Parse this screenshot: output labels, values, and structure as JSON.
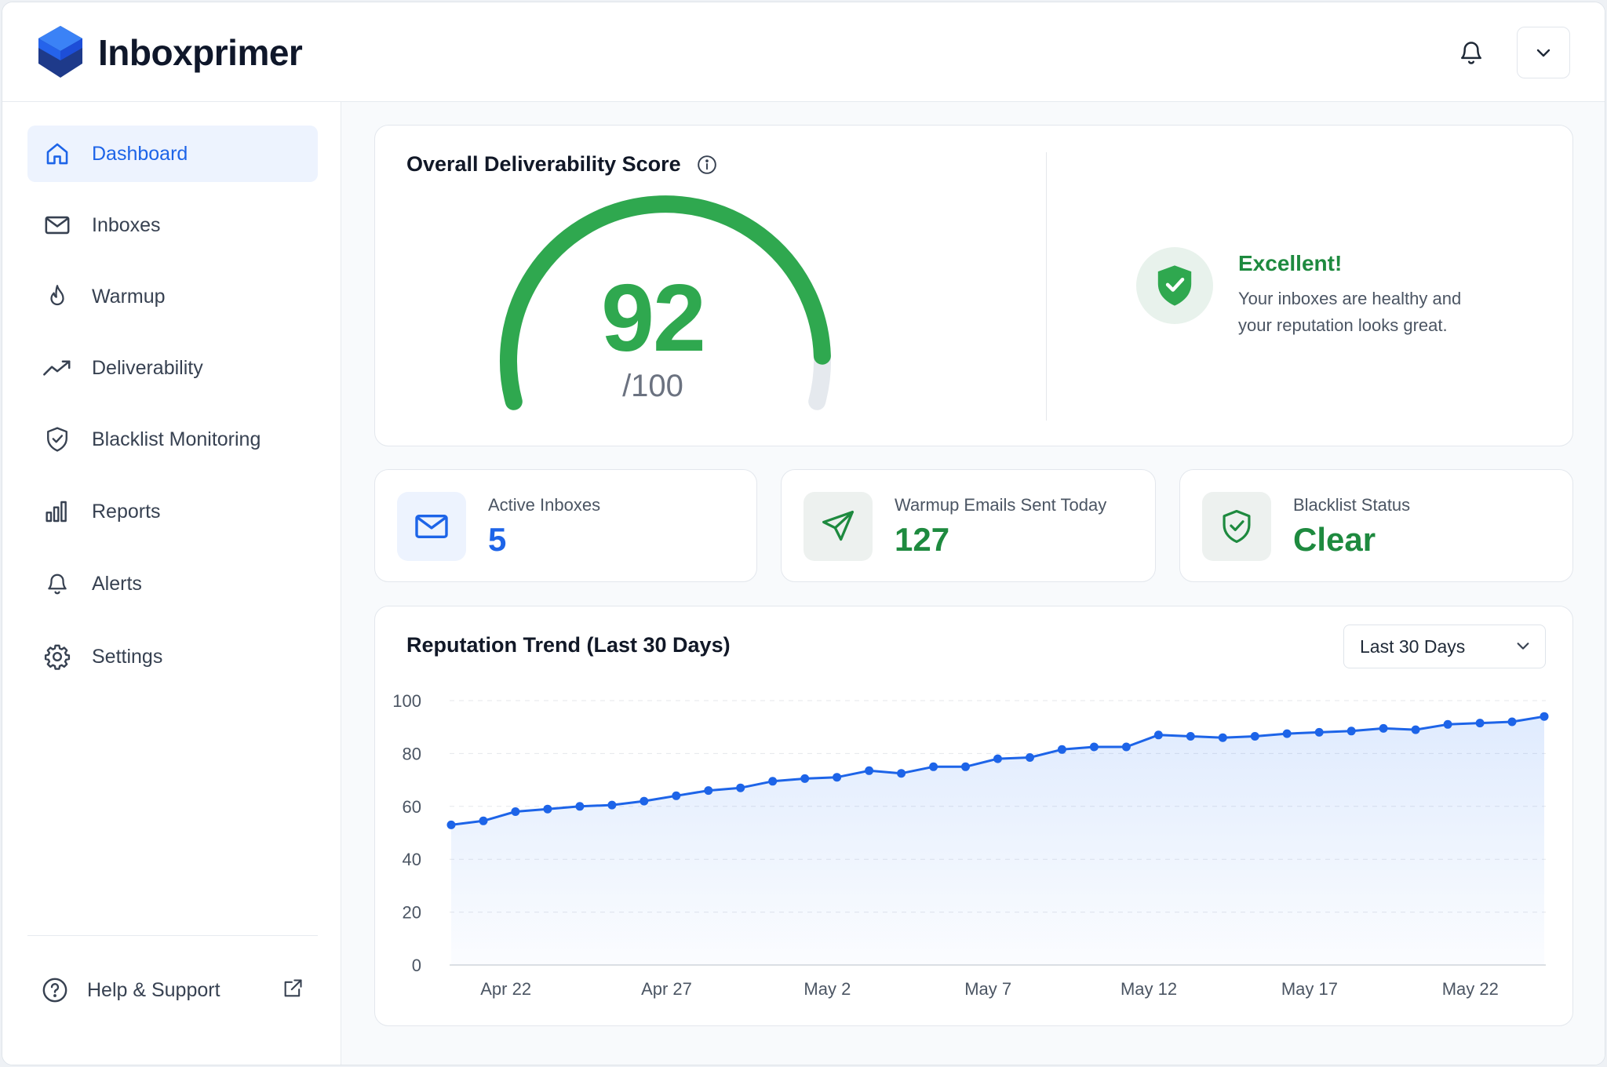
{
  "app": {
    "brand": "Inboxprimer",
    "brand_color": "#1d4ed8"
  },
  "header": {
    "notifications_icon": "bell-icon",
    "account_menu_icon": "chevron-down-icon"
  },
  "sidebar": {
    "items": [
      {
        "label": "Dashboard",
        "icon": "home-icon",
        "active": true
      },
      {
        "label": "Inboxes",
        "icon": "mail-icon",
        "active": false
      },
      {
        "label": "Warmup",
        "icon": "flame-icon",
        "active": false
      },
      {
        "label": "Deliverability",
        "icon": "trend-up-icon",
        "active": false
      },
      {
        "label": "Blacklist Monitoring",
        "icon": "shield-check-icon",
        "active": false
      },
      {
        "label": "Reports",
        "icon": "bar-chart-icon",
        "active": false
      },
      {
        "label": "Alerts",
        "icon": "bell-icon",
        "active": false
      },
      {
        "label": "Settings",
        "icon": "gear-icon",
        "active": false
      }
    ],
    "help": {
      "label": "Help & Support",
      "icon": "question-icon",
      "ext_icon": "external-link-icon"
    }
  },
  "score": {
    "title": "Overall Deliverability Score",
    "value": "92",
    "max": "/100",
    "fraction": 0.92,
    "status_title": "Excellent!",
    "status_text": "Your inboxes are healthy and your reputation looks great.",
    "color": "#2fa84f"
  },
  "stats": [
    {
      "caption": "Active Inboxes",
      "value": "5",
      "icon": "mail-icon",
      "color": "#1d64e8"
    },
    {
      "caption": "Warmup Emails Sent Today",
      "value": "127",
      "icon": "send-icon",
      "color": "#1e8a3f"
    },
    {
      "caption": "Blacklist Status",
      "value": "Clear",
      "icon": "shield-check-icon",
      "color": "#1e8a3f"
    }
  ],
  "trend": {
    "range_label": "Last 30 Days"
  },
  "chart_data": {
    "type": "area",
    "title": "Reputation Trend (Last 30 Days)",
    "xlabel": "",
    "ylabel": "",
    "ylim": [
      0,
      100
    ],
    "yticks": [
      0,
      20,
      40,
      60,
      80,
      100
    ],
    "x_tick_labels": [
      "Apr 22",
      "Apr 27",
      "May 2",
      "May 7",
      "May 12",
      "May 17",
      "May 22"
    ],
    "x_tick_indices": [
      1.7,
      6.7,
      11.7,
      16.7,
      21.7,
      26.7,
      31.7
    ],
    "grid": true,
    "series": [
      {
        "color": "#1d64e8",
        "values": [
          53,
          54.5,
          58,
          59,
          60,
          60.5,
          62,
          64,
          66,
          67,
          69.5,
          70.5,
          71,
          73.5,
          72.5,
          75,
          75,
          78,
          78.5,
          81.5,
          82.5,
          82.5,
          87,
          86.5,
          86,
          86.5,
          87.5,
          88,
          88.5,
          89.5,
          89,
          91,
          91.5,
          92,
          94
        ]
      }
    ]
  }
}
